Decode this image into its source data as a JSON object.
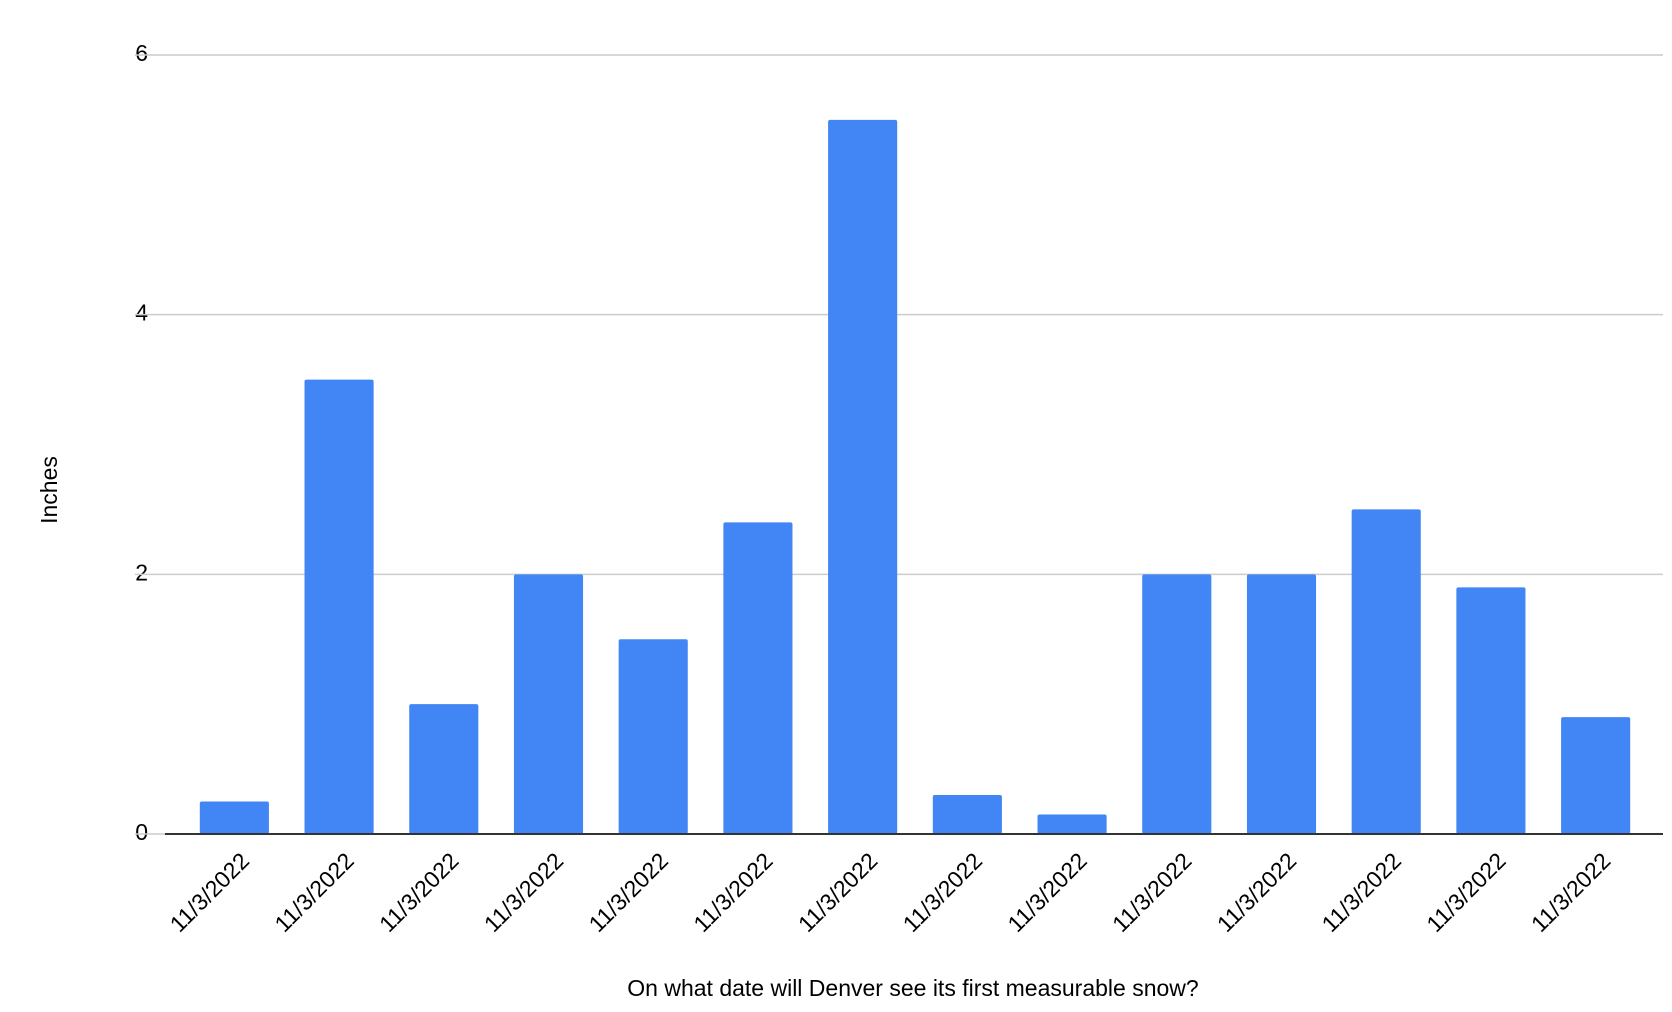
{
  "chart_data": {
    "type": "bar",
    "x_label": "On what date will Denver see its first measurable snow?",
    "y_label": "Inches",
    "categories": [
      "11/3/2022",
      "11/3/2022",
      "11/3/2022",
      "11/3/2022",
      "11/3/2022",
      "11/3/2022",
      "11/3/2022",
      "11/3/2022",
      "11/3/2022",
      "11/3/2022",
      "11/3/2022",
      "11/3/2022",
      "11/3/2022",
      "11/3/2022"
    ],
    "values": [
      0.25,
      3.5,
      1,
      2,
      1.5,
      2.4,
      5.5,
      0.3,
      0.15,
      2,
      2,
      2.5,
      1.9,
      0.9
    ],
    "color": "#4285f4",
    "ylim": [
      0,
      6
    ],
    "yticks": [
      0,
      2,
      4,
      6
    ],
    "grid": true
  }
}
